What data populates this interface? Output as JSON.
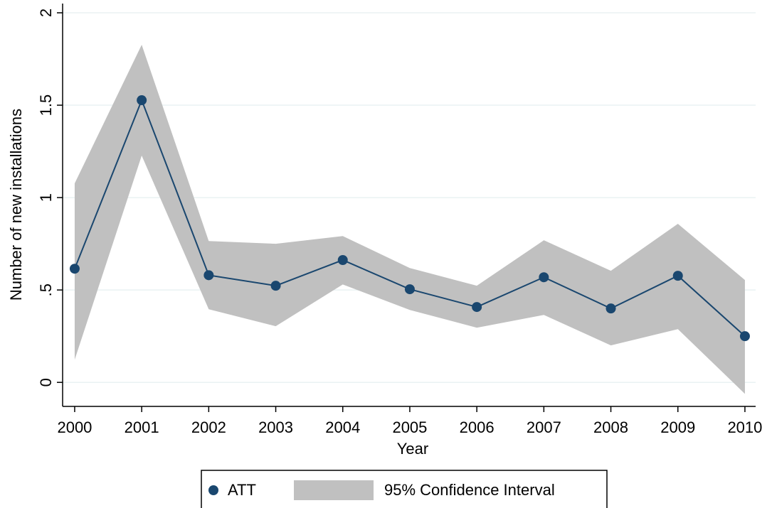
{
  "chart_data": {
    "type": "line",
    "x": [
      2000,
      2001,
      2002,
      2003,
      2004,
      2005,
      2006,
      2007,
      2008,
      2009,
      2010
    ],
    "series": [
      {
        "name": "ATT",
        "color": "#1a476f",
        "values": [
          0.615,
          1.527,
          0.58,
          0.523,
          0.662,
          0.504,
          0.408,
          0.569,
          0.4,
          0.577,
          0.25
        ]
      },
      {
        "name": "95% Confidence Interval",
        "color": "#c0c0c0",
        "upper": [
          1.077,
          1.827,
          0.765,
          0.75,
          0.792,
          0.619,
          0.523,
          0.769,
          0.604,
          0.858,
          0.554
        ],
        "lower": [
          0.123,
          1.227,
          0.396,
          0.304,
          0.53,
          0.392,
          0.296,
          0.365,
          0.2,
          0.288,
          -0.062
        ]
      }
    ],
    "xlabel": "Year",
    "ylabel": "Number of new installations",
    "xlim": [
      1999.82,
      2010.16
    ],
    "ylim": [
      -0.13,
      2.05
    ],
    "xticks": [
      2000,
      2001,
      2002,
      2003,
      2004,
      2005,
      2006,
      2007,
      2008,
      2009,
      2010
    ],
    "yticks": [
      0,
      {
        "value": 0.5,
        "label": ".5"
      },
      1,
      1.5,
      2
    ],
    "grid": true,
    "legend": "bottom"
  }
}
